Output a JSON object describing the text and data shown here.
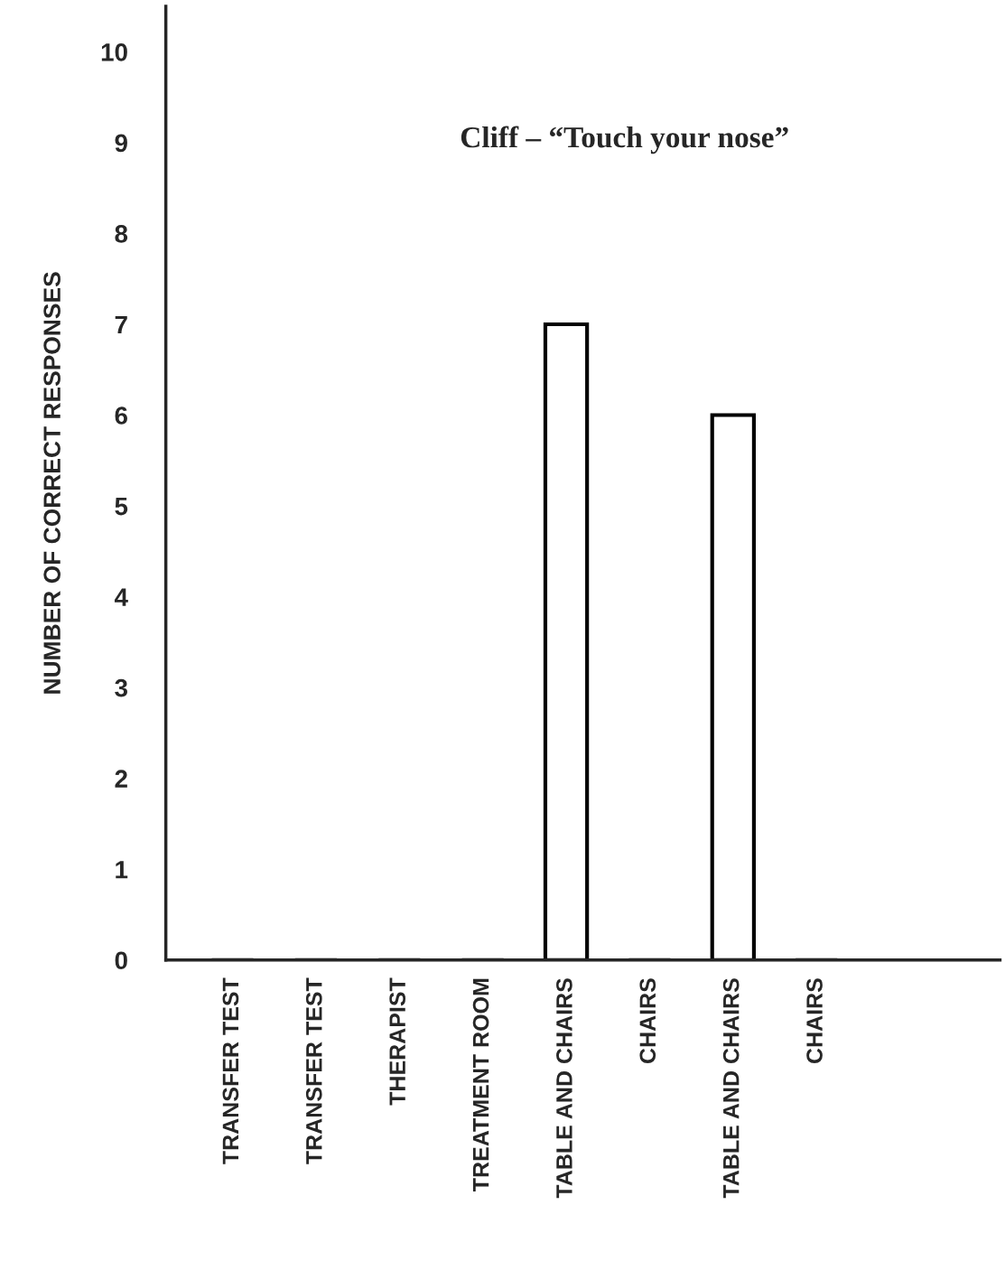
{
  "chart_data": {
    "type": "bar",
    "title": "Cliff – “Touch your nose”",
    "ylabel": "NUMBER OF CORRECT RESPONSES",
    "categories": [
      "TRANSFER TEST",
      "TRANSFER TEST",
      "THERAPIST",
      "TREATMENT ROOM",
      "TABLE AND CHAIRS",
      "CHAIRS",
      "TABLE AND CHAIRS",
      "CHAIRS"
    ],
    "values": [
      0,
      0,
      0,
      0,
      7,
      0,
      6,
      0
    ],
    "colors": [
      "#000000",
      "#000000",
      "#000000",
      "#000000",
      "#ffffff",
      "#000000",
      "#ffffff",
      "#000000"
    ],
    "ylim": [
      0,
      10.5
    ],
    "yticks": [
      0,
      1,
      2,
      3,
      4,
      5,
      6,
      7,
      8,
      9,
      10
    ],
    "grid": false,
    "legend": false
  }
}
